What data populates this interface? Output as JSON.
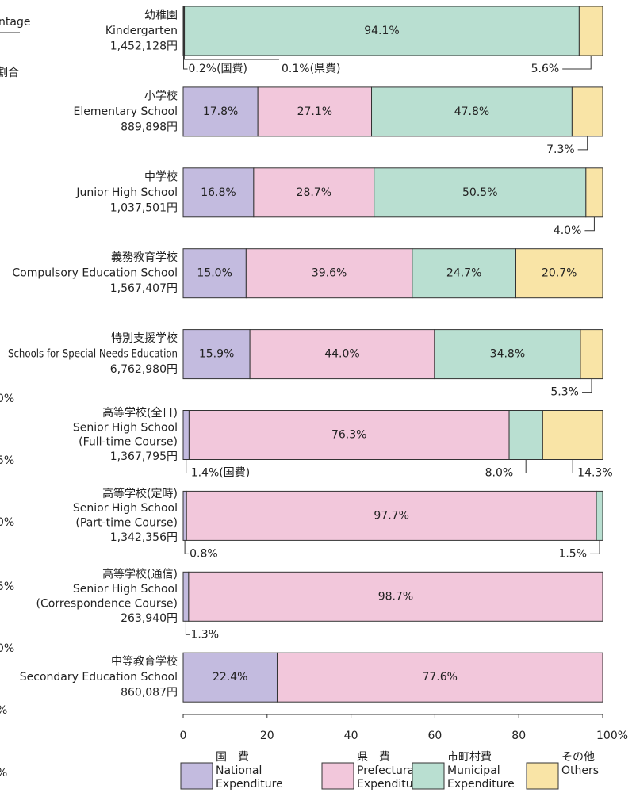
{
  "chart_data": {
    "type": "stacked_barh",
    "categories": [
      "幼稚園",
      "小学校",
      "中学校",
      "義務教育学校",
      "特別支援学校",
      "高等学校(全日)",
      "高等学校(定時)",
      "高等学校(通信)",
      "中等教育学校"
    ],
    "categories_en": [
      [
        "Kindergarten"
      ],
      [
        "Elementary School"
      ],
      [
        "Junior High School"
      ],
      [
        "Compulsory Education School"
      ],
      [
        "Schools for Special Needs Education"
      ],
      [
        "Senior High School",
        "(Full-time Course)"
      ],
      [
        "Senior High School",
        "(Part-time Course)"
      ],
      [
        "Senior High School",
        "(Correspondence Course)"
      ],
      [
        "Secondary Education School"
      ]
    ],
    "totals": [
      "1,452,128円",
      "889,898円",
      "1,037,501円",
      "1,567,407円",
      "6,762,980円",
      "1,367,795円",
      "1,342,356円",
      "263,940円",
      "860,087円"
    ],
    "series": [
      {
        "name": "国　費",
        "name_en": [
          "National",
          "Expenditure"
        ],
        "color": "#c3bbdf",
        "values": [
          0.2,
          17.8,
          16.8,
          15.0,
          15.9,
          1.4,
          0.8,
          1.3,
          22.4
        ],
        "value_labels": [
          "0.2%(国費)",
          "17.8%",
          "16.8%",
          "15.0%",
          "15.9%",
          "1.4%(国費)",
          "0.8%",
          "1.3%",
          "22.4%"
        ]
      },
      {
        "name": "県　費",
        "name_en": [
          "Prefectural",
          "Expenditure"
        ],
        "color": "#f2c7db",
        "values": [
          0.1,
          27.1,
          28.7,
          39.6,
          44.0,
          76.3,
          97.7,
          98.7,
          77.6
        ],
        "value_labels": [
          "0.1%(県費)",
          "27.1%",
          "28.7%",
          "39.6%",
          "44.0%",
          "76.3%",
          "97.7%",
          "98.7%",
          "77.6%"
        ]
      },
      {
        "name": "市町村費",
        "name_en": [
          "Municipal",
          "Expenditure"
        ],
        "color": "#b9dfd1",
        "values": [
          94.1,
          47.8,
          50.5,
          24.7,
          34.8,
          8.0,
          1.5,
          null,
          null
        ],
        "value_labels": [
          "94.1%",
          "47.8%",
          "50.5%",
          "24.7%",
          "34.8%",
          "8.0%",
          "1.5%",
          null,
          null
        ]
      },
      {
        "name": "その他",
        "name_en": [
          "Others"
        ],
        "color": "#f9e4a6",
        "values": [
          5.6,
          7.3,
          4.0,
          20.7,
          5.3,
          14.3,
          null,
          null,
          null
        ],
        "value_labels": [
          "5.6%",
          "7.3%",
          "4.0%",
          "20.7%",
          "5.3%",
          "14.3%",
          null,
          null,
          null
        ]
      }
    ],
    "xlim": [
      0,
      100
    ],
    "xticks": [
      0,
      20,
      40,
      60,
      80,
      {
        "value": 100,
        "label": "100%"
      }
    ],
    "edge_texts": [
      "ntage",
      "割合",
      "0%",
      "5%",
      "0%",
      "5%",
      "0%",
      "%",
      "%"
    ]
  }
}
